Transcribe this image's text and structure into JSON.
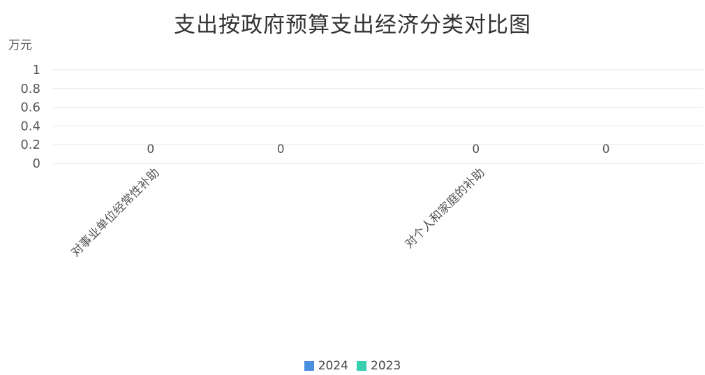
{
  "chart_data": {
    "type": "bar",
    "title": "支出按政府预算支出经济分类对比图",
    "ylabel": "万元",
    "ylim": [
      0,
      1
    ],
    "yticks": [
      "0",
      "0.2",
      "0.4",
      "0.6",
      "0.8",
      "1"
    ],
    "grid": true,
    "legend_position": "bottom",
    "categories": [
      "对事业单位经常性补助",
      "对个人和家庭的补助"
    ],
    "series": [
      {
        "name": "2024",
        "color": "#4a8fe0",
        "values": [
          0,
          0
        ],
        "labels": [
          "0",
          "0"
        ]
      },
      {
        "name": "2023",
        "color": "#39d0b0",
        "values": [
          0,
          0
        ],
        "labels": [
          "0",
          "0"
        ]
      }
    ]
  }
}
